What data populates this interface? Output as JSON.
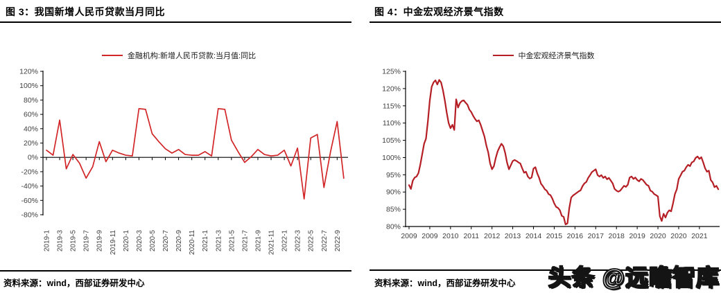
{
  "panels": [
    {
      "title": "图 3：我国新增人民币贷款当月同比",
      "legend": "金融机构:新增人民币贷款:当月值:同比",
      "source": "资料来源：wind，西部证券研发中心"
    },
    {
      "title": "图 4：中金宏观经济景气指数",
      "legend": "中金宏观经济景气指数",
      "source": "资料来源：wind，西部证券研发中心"
    }
  ],
  "watermark": "头条 @远瞻智库",
  "chart_data": [
    {
      "type": "line",
      "title": "我国新增人民币贷款当月同比",
      "series_name": "金融机构:新增人民币贷款:当月值:同比",
      "color": "#d22527",
      "ylim": [
        -80,
        120
      ],
      "y_ticks": [
        "120%",
        "100%",
        "80%",
        "60%",
        "40%",
        "20%",
        "0%",
        "-20%",
        "-40%",
        "-60%",
        "-80%"
      ],
      "x_label_every": 2,
      "x_labels": [
        "2019-1",
        "2019-3",
        "2019-5",
        "2019-7",
        "2019-9",
        "2019-11",
        "2020-1",
        "2020-3",
        "2020-5",
        "2020-7",
        "2020-9",
        "2020-11",
        "2021-1",
        "2021-3",
        "2021-5",
        "2021-7",
        "2021-9",
        "2021-11",
        "2022-1",
        "2022-3",
        "2022-5",
        "2022-7",
        "2022-9"
      ],
      "x_months": "monthly 2019-01 .. 2022-10",
      "values": [
        10,
        3,
        52,
        -16,
        4,
        -8,
        -29,
        -13,
        22,
        -6,
        10,
        6,
        3,
        2,
        68,
        67,
        33,
        22,
        12,
        6,
        11,
        4,
        3,
        3,
        8,
        2,
        68,
        67,
        24,
        8,
        -7,
        1,
        11,
        4,
        2,
        3,
        10,
        -12,
        13,
        -58,
        27,
        32,
        -42,
        8,
        50,
        -29
      ],
      "grid": false,
      "legend_position": "top-center"
    },
    {
      "type": "line",
      "title": "中金宏观经济景气指数",
      "series_name": "中金宏观经济景气指数",
      "color": "#b41e24",
      "ylim": [
        80,
        125
      ],
      "y_ticks": [
        "125%",
        "120%",
        "115%",
        "110%",
        "105%",
        "100%",
        "95%",
        "90%",
        "85%",
        "80%"
      ],
      "x_labels": [
        "2009",
        "2009",
        "2010",
        "2011",
        "2012",
        "2013",
        "2014",
        "2015",
        "2016",
        "2017",
        "2018",
        "2019",
        "2020",
        "2020",
        "2021"
      ],
      "x_label_positions": [
        0,
        11,
        22,
        33,
        44,
        55,
        66,
        77,
        88,
        99,
        110,
        121,
        132,
        143,
        154
      ],
      "x_months": "monthly 2009-01 .. 2022-09",
      "values": [
        92,
        90.9,
        93.3,
        94.2,
        94.5,
        95.5,
        98,
        101,
        104,
        105.5,
        110.5,
        116.5,
        120.5,
        121.8,
        122.4,
        121.2,
        122.5,
        121.8,
        119.5,
        116.5,
        113,
        110,
        108.5,
        109.5,
        108,
        116.9,
        114.5,
        115.8,
        116.4,
        116.6,
        115.9,
        115.3,
        113.9,
        113.2,
        112.1,
        111.2,
        110.5,
        110.8,
        109.5,
        107.8,
        106.1,
        103.5,
        101.5,
        98.3,
        96.6,
        97.5,
        99.9,
        101.8,
        103,
        104,
        103.3,
        101.3,
        98.5,
        96.6,
        97.8,
        99,
        99.3,
        99,
        98.6,
        98.3,
        96.9,
        95.6,
        95.9,
        94.5,
        93.9,
        94.2,
        96.8,
        97.2,
        95.4,
        94.1,
        92.4,
        91.7,
        90.8,
        90.4,
        89.4,
        89.1,
        88.1,
        86.7,
        85.7,
        85.4,
        84.7,
        83.1,
        82.8,
        80.6,
        80.9,
        85.4,
        88.4,
        89,
        89.4,
        89.8,
        90.2,
        90.5,
        91.7,
        92.5,
        92.9,
        94.1,
        94.9,
        95.8,
        96.2,
        96.6,
        94.9,
        94.5,
        94.9,
        94.1,
        94.5,
        93.7,
        94.1,
        93.3,
        92.5,
        90.9,
        90.4,
        90.1,
        90.4,
        91.1,
        91.8,
        91.5,
        92.1,
        94.2,
        94.5,
        93.8,
        94.2,
        93.5,
        93.1,
        93.8,
        93.5,
        92.8,
        92.1,
        91.8,
        90.4,
        90.1,
        89.4,
        89.1,
        88.7,
        83,
        81.6,
        83.7,
        82.6,
        84,
        84.7,
        84.4,
        86.7,
        89.4,
        90.8,
        93.8,
        94.8,
        95.9,
        96.2,
        97.2,
        97.9,
        97.5,
        98.6,
        98.9,
        99.9,
        100.3,
        99.6,
        100.1,
        98.6,
        96.9,
        95.9,
        96.2,
        93.5,
        92.8,
        91.4,
        91.8,
        90.8
      ],
      "grid": false,
      "legend_position": "top-center"
    }
  ],
  "colors": {
    "axis": "#000000",
    "tick_text": "#3f3f3f"
  }
}
